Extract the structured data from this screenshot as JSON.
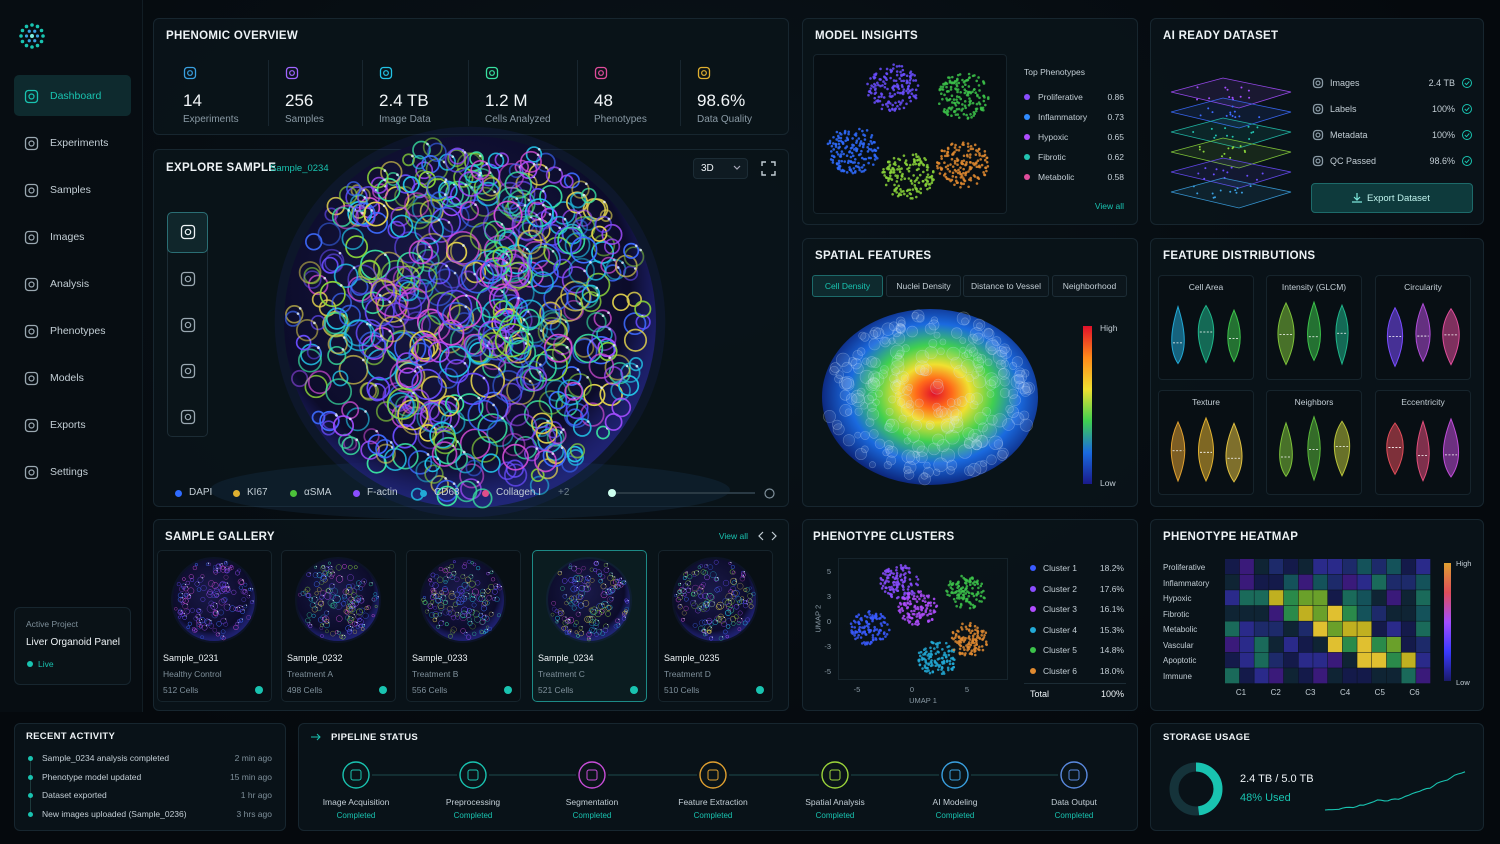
{
  "nav": {
    "items": [
      "Dashboard",
      "Experiments",
      "Samples",
      "Images",
      "Analysis",
      "Phenotypes",
      "Models",
      "Exports",
      "Settings"
    ],
    "active": 0
  },
  "project": {
    "label": "Active Project",
    "name": "Liver Organoid Panel",
    "status": "Live"
  },
  "overview": {
    "title": "PHENOMIC OVERVIEW",
    "stats": [
      {
        "value": "14",
        "label": "Experiments",
        "color": "#3aa0e0"
      },
      {
        "value": "256",
        "label": "Samples",
        "color": "#a066ff"
      },
      {
        "value": "2.4 TB",
        "label": "Image Data",
        "color": "#22c3e6"
      },
      {
        "value": "1.2 M",
        "label": "Cells Analyzed",
        "color": "#39e0a0"
      },
      {
        "value": "48",
        "label": "Phenotypes",
        "color": "#e04d9b"
      },
      {
        "value": "98.6%",
        "label": "Data Quality",
        "color": "#e0b030"
      }
    ]
  },
  "explore": {
    "title": "EXPLORE SAMPLE",
    "sample": "Sample_0234",
    "view": "3D",
    "channels": [
      {
        "name": "DAPI",
        "color": "#2f6bff"
      },
      {
        "name": "KI67",
        "color": "#e0b030"
      },
      {
        "name": "αSMA",
        "color": "#4cc23a"
      },
      {
        "name": "F-actin",
        "color": "#8a4dff"
      },
      {
        "name": "CD68",
        "color": "#22a9d6"
      },
      {
        "name": "Collagen I",
        "color": "#e04d8a"
      }
    ],
    "more": "+2"
  },
  "model_insights": {
    "title": "MODEL INSIGHTS",
    "subtitle": "Top Phenotypes",
    "phenotypes": [
      {
        "name": "Proliferative",
        "score": "0.86",
        "color": "#8a4dff"
      },
      {
        "name": "Inflammatory",
        "score": "0.73",
        "color": "#2f8bff"
      },
      {
        "name": "Hypoxic",
        "score": "0.65",
        "color": "#b04dff"
      },
      {
        "name": "Fibrotic",
        "score": "0.62",
        "color": "#22c3b0"
      },
      {
        "name": "Metabolic",
        "score": "0.58",
        "color": "#e04d9b"
      }
    ],
    "link": "View all"
  },
  "dataset": {
    "title": "AI READY DATASET",
    "items": [
      {
        "name": "Images",
        "value": "2.4 TB"
      },
      {
        "name": "Labels",
        "value": "100%"
      },
      {
        "name": "Metadata",
        "value": "100%"
      },
      {
        "name": "QC Passed",
        "value": "98.6%"
      }
    ],
    "button": "Export Dataset"
  },
  "spatial": {
    "title": "SPATIAL FEATURES",
    "tabs": [
      "Cell Density",
      "Nuclei Density",
      "Distance to Vessel",
      "Neighborhood"
    ],
    "active": 0,
    "high": "High",
    "low": "Low"
  },
  "distributions": {
    "title": "FEATURE DISTRIBUTIONS",
    "features": [
      {
        "name": "Cell Area",
        "colors": [
          "#22a9d6",
          "#1fb58a",
          "#3cc24a"
        ]
      },
      {
        "name": "Intensity (GLCM)",
        "colors": [
          "#7ec23a",
          "#3cc24a",
          "#1fb58a"
        ]
      },
      {
        "name": "Circularity",
        "colors": [
          "#7a4dff",
          "#b04dd8",
          "#e04d9b"
        ]
      },
      {
        "name": "Texture",
        "colors": [
          "#e0a030",
          "#e0b030",
          "#e0c040"
        ]
      },
      {
        "name": "Neighbors",
        "colors": [
          "#7ec23a",
          "#5ab83a",
          "#b8c23a"
        ]
      },
      {
        "name": "Eccentricity",
        "colors": [
          "#e04d5a",
          "#e04d7a",
          "#c04dd8"
        ]
      }
    ]
  },
  "gallery": {
    "title": "SAMPLE GALLERY",
    "link": "View all",
    "selected": 3,
    "samples": [
      {
        "name": "Sample_0231",
        "condition": "Healthy Control",
        "cells": "512 Cells"
      },
      {
        "name": "Sample_0232",
        "condition": "Treatment A",
        "cells": "498 Cells"
      },
      {
        "name": "Sample_0233",
        "condition": "Treatment B",
        "cells": "556 Cells"
      },
      {
        "name": "Sample_0234",
        "condition": "Treatment C",
        "cells": "521 Cells"
      },
      {
        "name": "Sample_0235",
        "condition": "Treatment D",
        "cells": "510 Cells"
      }
    ]
  },
  "clusters": {
    "title": "PHENOTYPE CLUSTERS",
    "x_label": "UMAP 1",
    "y_label": "UMAP 2",
    "xticks": [
      "-5",
      "0",
      "5"
    ],
    "yticks": [
      "5",
      "3",
      "0",
      "-3",
      "-5"
    ],
    "items": [
      {
        "name": "Cluster 1",
        "share": "18.2%",
        "color": "#3a5bff"
      },
      {
        "name": "Cluster 2",
        "share": "17.6%",
        "color": "#8a4dff"
      },
      {
        "name": "Cluster 3",
        "share": "16.1%",
        "color": "#b04dff"
      },
      {
        "name": "Cluster 4",
        "share": "15.3%",
        "color": "#22a9d6"
      },
      {
        "name": "Cluster 5",
        "share": "14.8%",
        "color": "#3cc24a"
      },
      {
        "name": "Cluster 6",
        "share": "18.0%",
        "color": "#e08a30"
      }
    ],
    "total_label": "Total",
    "total": "100%"
  },
  "heatmap": {
    "title": "PHENOTYPE HEATMAP",
    "rows": [
      "Proliferative",
      "Inflammatory",
      "Hypoxic",
      "Fibrotic",
      "Metabolic",
      "Vascular",
      "Apoptotic",
      "Immune"
    ],
    "cols": [
      "C1",
      "C2",
      "C3",
      "C4",
      "C5",
      "C6"
    ],
    "high": "High",
    "low": "Low"
  },
  "activity": {
    "title": "RECENT ACTIVITY",
    "items": [
      {
        "text": "Sample_0234 analysis completed",
        "time": "2 min ago"
      },
      {
        "text": "Phenotype model updated",
        "time": "15 min ago"
      },
      {
        "text": "Dataset exported",
        "time": "1 hr ago"
      },
      {
        "text": "New images uploaded (Sample_0236)",
        "time": "3 hrs ago"
      }
    ]
  },
  "pipeline": {
    "title": "PIPELINE STATUS",
    "steps": [
      {
        "name": "Image Acquisition",
        "status": "Completed",
        "color": "#19c3b0"
      },
      {
        "name": "Preprocessing",
        "status": "Completed",
        "color": "#19c3b0"
      },
      {
        "name": "Segmentation",
        "status": "Completed",
        "color": "#c84dd8"
      },
      {
        "name": "Feature Extraction",
        "status": "Completed",
        "color": "#e0a030"
      },
      {
        "name": "Spatial Analysis",
        "status": "Completed",
        "color": "#9bd43a"
      },
      {
        "name": "AI Modeling",
        "status": "Completed",
        "color": "#3aa0e0"
      },
      {
        "name": "Data Output",
        "status": "Completed",
        "color": "#5a8ae0"
      }
    ]
  },
  "storage": {
    "title": "STORAGE USAGE",
    "used": "2.4 TB / 5.0 TB",
    "percent": {
      "value": 48,
      "label": "48% Used"
    }
  }
}
